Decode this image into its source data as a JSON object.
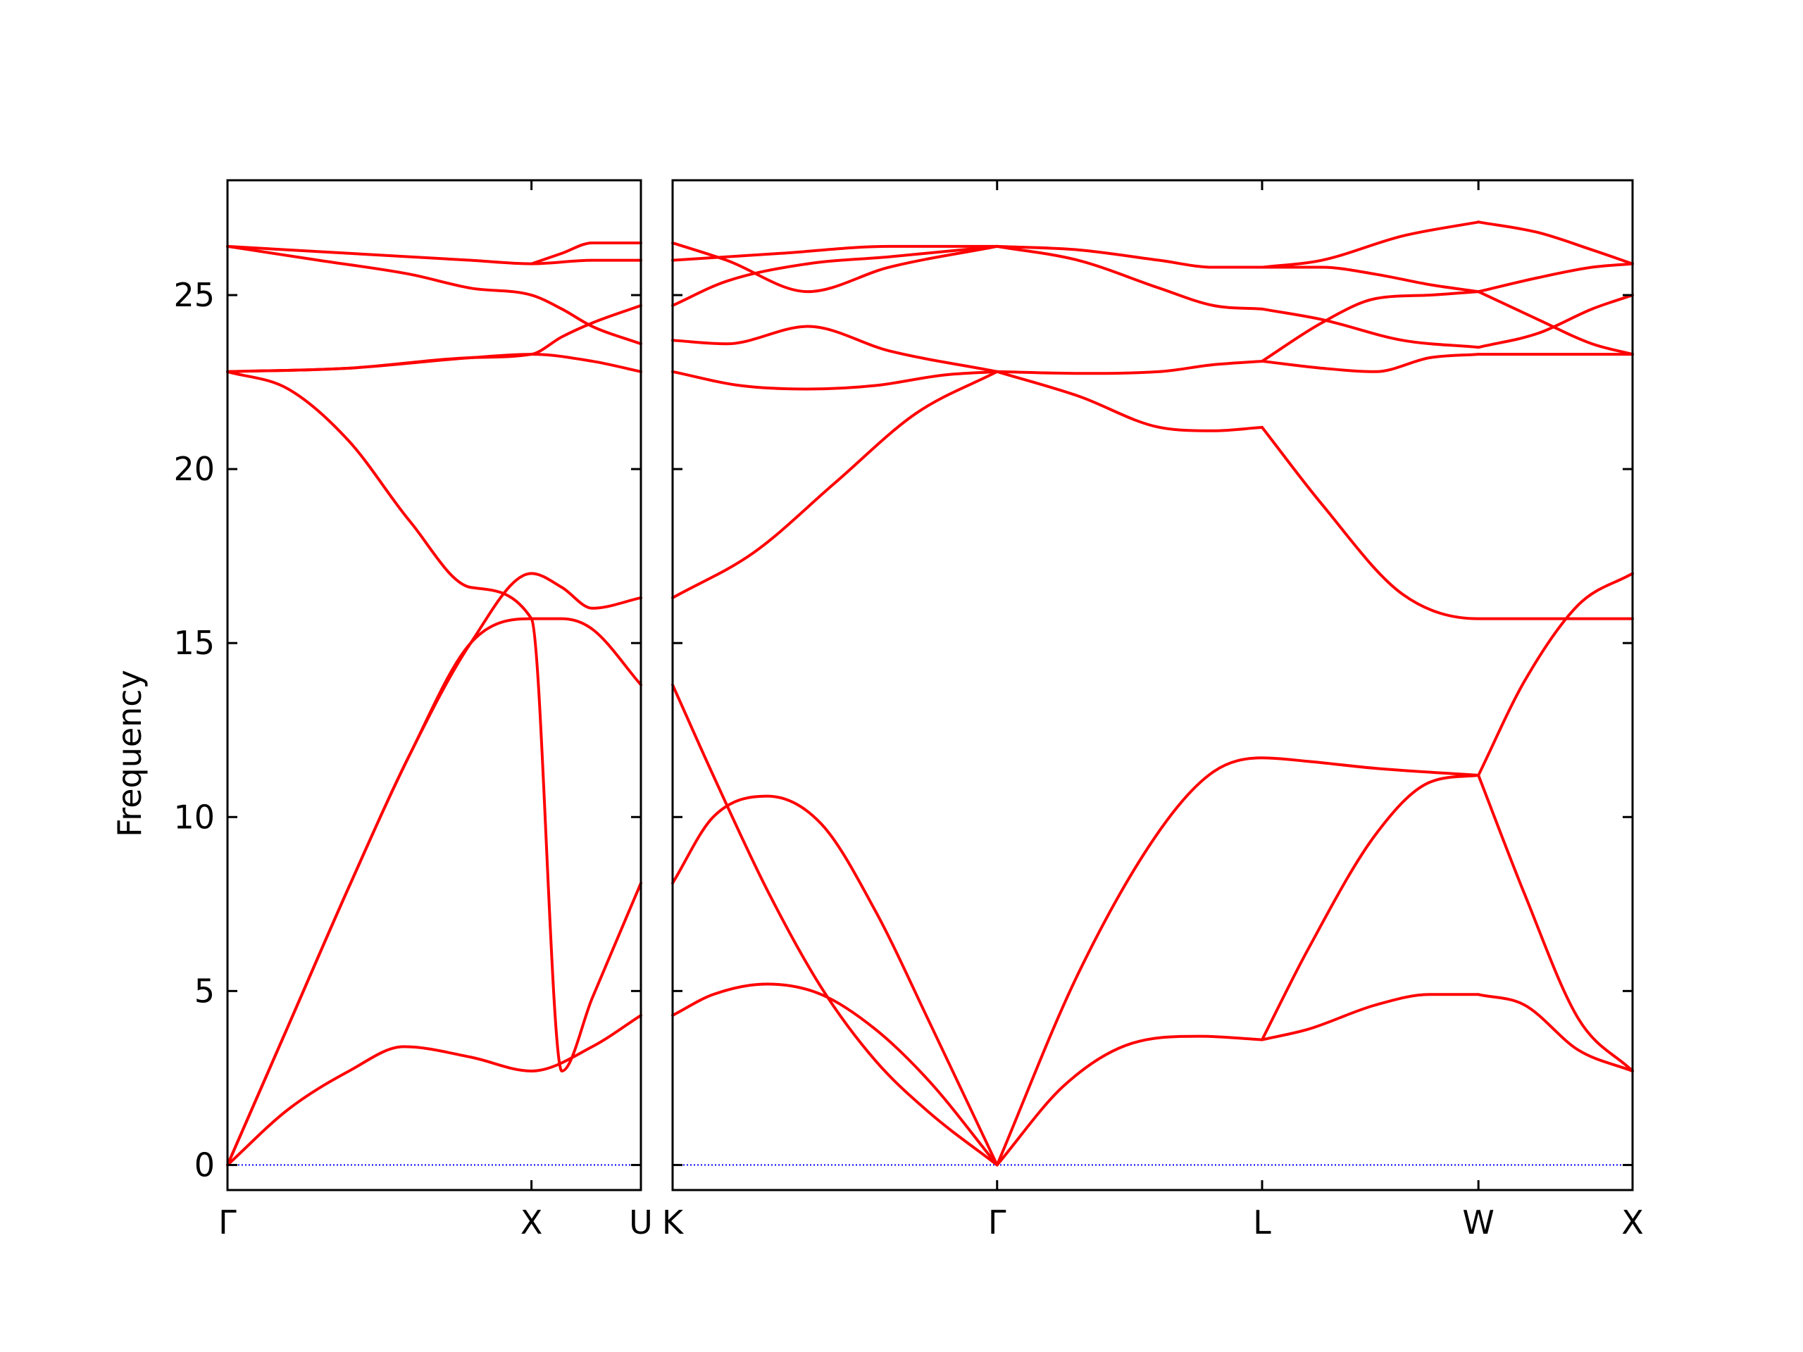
{
  "chart_data": {
    "type": "line",
    "ylabel": "Frequency",
    "ylim": [
      -0.72,
      28.3
    ],
    "yticks": [
      0,
      5,
      10,
      15,
      20,
      25
    ],
    "band_color": "#ff0000",
    "zero_line_color": "#0000ff",
    "grid": false,
    "panels": [
      {
        "xlim": [
          0,
          1.36
        ],
        "xticks": [
          {
            "pos": 0,
            "label": "Γ"
          },
          {
            "pos": 1.0,
            "label": "X"
          },
          {
            "pos": 1.36,
            "label": "U"
          }
        ],
        "bands": [
          {
            "x": [
              0,
              0.2,
              0.4,
              0.58,
              0.8,
              1.0,
              1.2,
              1.36
            ],
            "y": [
              0,
              1.6,
              2.7,
              3.4,
              3.1,
              2.7,
              3.4,
              4.3
            ]
          },
          {
            "x": [
              0,
              0.2,
              0.4,
              0.6,
              0.8,
              1.0,
              1.1,
              1.2,
              1.36
            ],
            "y": [
              0,
              4.0,
              8.0,
              11.8,
              15.0,
              17.0,
              16.6,
              16.0,
              16.3
            ]
          },
          {
            "x": [
              0,
              0.2,
              0.4,
              0.6,
              0.8,
              1.0,
              1.1,
              1.2,
              1.36
            ],
            "y": [
              0,
              4.0,
              8.0,
              11.8,
              15.0,
              15.7,
              15.7,
              15.4,
              13.8
            ]
          },
          {
            "x": [
              0,
              0.2,
              0.4,
              0.6,
              0.8,
              1.0,
              1.1,
              1.2,
              1.36
            ],
            "y": [
              22.8,
              22.3,
              20.8,
              18.5,
              16.6,
              15.7,
              2.7,
              4.8,
              8.1
            ]
          },
          {
            "x": [
              0,
              0.4,
              0.8,
              1.0,
              1.1,
              1.2,
              1.36
            ],
            "y": [
              22.8,
              22.9,
              23.2,
              23.3,
              23.8,
              24.2,
              24.7
            ]
          },
          {
            "x": [
              0,
              0.4,
              0.8,
              1.0,
              1.2,
              1.36
            ],
            "y": [
              22.8,
              22.9,
              23.2,
              23.3,
              23.1,
              22.8
            ]
          },
          {
            "x": [
              0,
              0.3,
              0.6,
              0.8,
              1.0,
              1.1,
              1.2,
              1.36
            ],
            "y": [
              26.4,
              26.0,
              25.6,
              25.2,
              25.0,
              24.6,
              24.1,
              23.6
            ]
          },
          {
            "x": [
              0,
              0.4,
              0.8,
              1.0,
              1.2,
              1.36
            ],
            "y": [
              26.4,
              26.2,
              26.0,
              25.9,
              26.0,
              26.0
            ]
          },
          {
            "x": [
              1.0,
              1.1,
              1.2,
              1.36
            ],
            "y": [
              25.9,
              26.2,
              26.5,
              26.5
            ]
          }
        ]
      },
      {
        "xlim": [
          0,
          3.55
        ],
        "xticks": [
          {
            "pos": 0,
            "label": "K"
          },
          {
            "pos": 1.2,
            "label": "Γ"
          },
          {
            "pos": 2.18,
            "label": "L"
          },
          {
            "pos": 2.98,
            "label": "W"
          },
          {
            "pos": 3.55,
            "label": "X"
          }
        ],
        "bands": [
          {
            "x": [
              0,
              0.15,
              0.35,
              0.55,
              0.75,
              0.95,
              1.2
            ],
            "y": [
              4.3,
              4.9,
              5.2,
              4.9,
              3.9,
              2.4,
              0
            ]
          },
          {
            "x": [
              0,
              0.15,
              0.35,
              0.55,
              0.75,
              0.95,
              1.2
            ],
            "y": [
              13.8,
              11.2,
              7.9,
              5.1,
              3.0,
              1.5,
              0
            ]
          },
          {
            "x": [
              0,
              0.15,
              0.35,
              0.55,
              0.75,
              0.95,
              1.2
            ],
            "y": [
              8.1,
              10.0,
              10.6,
              9.8,
              7.3,
              4.1,
              0
            ]
          },
          {
            "x": [
              0,
              0.3,
              0.6,
              0.9,
              1.2
            ],
            "y": [
              16.3,
              17.6,
              19.6,
              21.6,
              22.8
            ]
          },
          {
            "x": [
              0,
              0.25,
              0.5,
              0.75,
              1.0,
              1.2
            ],
            "y": [
              22.8,
              22.4,
              22.3,
              22.4,
              22.7,
              22.8
            ]
          },
          {
            "x": [
              0,
              0.2,
              0.5,
              0.8,
              1.2
            ],
            "y": [
              23.7,
              23.6,
              24.1,
              23.4,
              22.8
            ]
          },
          {
            "x": [
              0,
              0.2,
              0.5,
              0.8,
              1.2
            ],
            "y": [
              24.7,
              25.4,
              25.9,
              26.1,
              26.4
            ]
          },
          {
            "x": [
              0,
              0.2,
              0.5,
              0.8,
              1.2
            ],
            "y": [
              26.5,
              26.0,
              25.1,
              25.8,
              26.4
            ]
          },
          {
            "x": [
              0,
              0.4,
              0.8,
              1.2
            ],
            "y": [
              26.0,
              26.2,
              26.4,
              26.4
            ]
          },
          {
            "x": [
              1.2,
              1.5,
              1.8,
              2.0,
              2.18,
              2.35,
              2.6,
              2.98
            ],
            "y": [
              0,
              5.5,
              9.6,
              11.3,
              11.7,
              11.6,
              11.4,
              11.2
            ]
          },
          {
            "x": [
              1.2,
              1.45,
              1.7,
              1.95,
              2.18
            ],
            "y": [
              0,
              2.3,
              3.5,
              3.7,
              3.6
            ]
          },
          {
            "x": [
              1.2,
              1.5,
              1.8,
              2.0,
              2.18
            ],
            "y": [
              22.8,
              22.1,
              21.2,
              21.1,
              21.2
            ]
          },
          {
            "x": [
              1.2,
              1.5,
              1.8,
              2.0,
              2.18
            ],
            "y": [
              22.8,
              22.75,
              22.8,
              23.0,
              23.1
            ]
          },
          {
            "x": [
              1.2,
              1.5,
              1.8,
              2.0,
              2.18
            ],
            "y": [
              26.4,
              26.0,
              25.2,
              24.7,
              24.6
            ]
          },
          {
            "x": [
              1.2,
              1.5,
              1.8,
              2.0,
              2.18
            ],
            "y": [
              26.4,
              26.3,
              26.0,
              25.8,
              25.8
            ]
          },
          {
            "x": [
              2.18,
              2.4,
              2.7,
              2.98,
              3.2,
              3.55
            ],
            "y": [
              21.2,
              19.0,
              16.4,
              15.7,
              15.7,
              15.7
            ]
          },
          {
            "x": [
              2.18,
              2.35,
              2.6,
              2.8,
              2.98
            ],
            "y": [
              3.6,
              3.9,
              4.6,
              4.9,
              4.9
            ]
          },
          {
            "x": [
              2.18,
              2.35,
              2.6,
              2.8,
              2.98
            ],
            "y": [
              3.6,
              6.2,
              9.5,
              11.0,
              11.2
            ]
          },
          {
            "x": [
              2.18,
              2.4,
              2.6,
              2.8,
              2.98
            ],
            "y": [
              23.1,
              22.9,
              22.8,
              23.2,
              23.3
            ]
          },
          {
            "x": [
              2.18,
              2.4,
              2.6,
              2.8,
              2.98
            ],
            "y": [
              23.1,
              24.2,
              24.9,
              25.0,
              25.1
            ]
          },
          {
            "x": [
              2.18,
              2.4,
              2.7,
              2.98
            ],
            "y": [
              24.6,
              24.3,
              23.7,
              23.5
            ]
          },
          {
            "x": [
              2.18,
              2.4,
              2.6,
              2.8,
              2.98
            ],
            "y": [
              25.8,
              25.8,
              25.6,
              25.3,
              25.1
            ]
          },
          {
            "x": [
              2.18,
              2.4,
              2.7,
              2.98
            ],
            "y": [
              25.8,
              26.0,
              26.7,
              27.1
            ]
          },
          {
            "x": [
              2.98,
              3.15,
              3.35,
              3.55
            ],
            "y": [
              4.9,
              4.6,
              3.3,
              2.7
            ]
          },
          {
            "x": [
              2.98,
              3.15,
              3.35,
              3.55
            ],
            "y": [
              11.2,
              7.8,
              4.2,
              2.7
            ]
          },
          {
            "x": [
              2.98,
              3.15,
              3.35,
              3.55
            ],
            "y": [
              11.2,
              13.9,
              16.1,
              17.0
            ]
          },
          {
            "x": [
              2.98,
              3.2,
              3.55
            ],
            "y": [
              23.3,
              23.3,
              23.3
            ]
          },
          {
            "x": [
              2.98,
              3.2,
              3.4,
              3.55
            ],
            "y": [
              23.5,
              23.9,
              24.6,
              25.0
            ]
          },
          {
            "x": [
              2.98,
              3.2,
              3.4,
              3.55
            ],
            "y": [
              25.1,
              24.3,
              23.6,
              23.3
            ]
          },
          {
            "x": [
              2.98,
              3.2,
              3.4,
              3.55
            ],
            "y": [
              25.1,
              25.5,
              25.8,
              25.9
            ]
          },
          {
            "x": [
              2.98,
              3.2,
              3.4,
              3.55
            ],
            "y": [
              27.1,
              26.8,
              26.3,
              25.9
            ]
          }
        ]
      }
    ]
  }
}
